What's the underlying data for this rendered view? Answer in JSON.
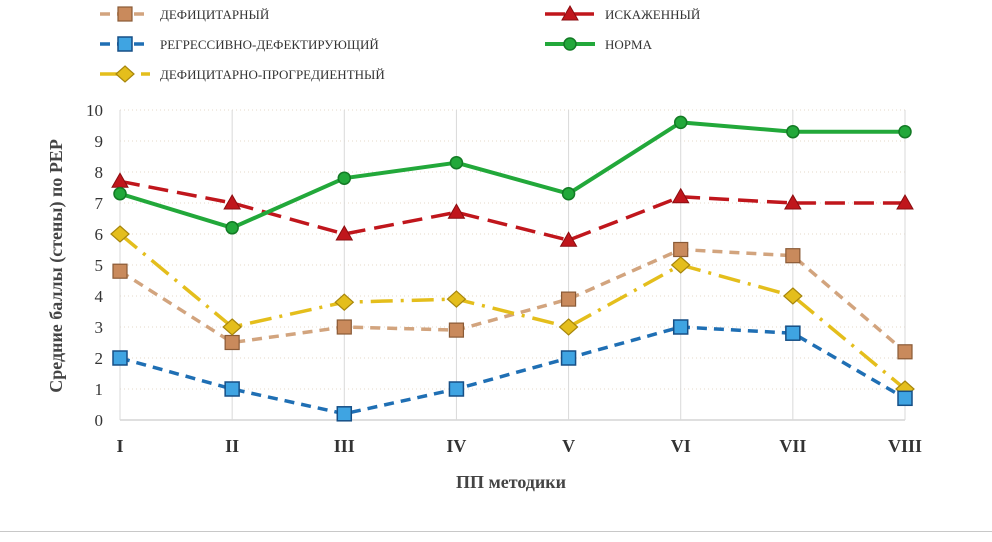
{
  "chart_data": {
    "type": "line",
    "categories": [
      "I",
      "II",
      "III",
      "IV",
      "V",
      "VI",
      "VII",
      "VIII"
    ],
    "xlabel": "ПП методики",
    "ylabel": "Средние баллы (стены) по РЕР",
    "ylim": [
      0,
      10
    ],
    "yticks": [
      "0",
      "1",
      "2",
      "3",
      "4",
      "5",
      "6",
      "7",
      "8",
      "9",
      "10"
    ],
    "grid": true,
    "legend_position": "top",
    "series": [
      {
        "name": "ДЕФИЦИТАРНЫЙ",
        "color": "#d2a47e",
        "dash": "dash",
        "marker": "square-brown",
        "values": [
          4.8,
          2.5,
          3.0,
          2.9,
          3.9,
          5.5,
          5.3,
          2.2
        ]
      },
      {
        "name": "ИСКАЖЕННЫЙ",
        "color": "#c0161c",
        "dash": "longdash",
        "marker": "triangle",
        "values": [
          7.7,
          7.0,
          6.0,
          6.7,
          5.8,
          7.2,
          7.0,
          7.0
        ]
      },
      {
        "name": "РЕГРЕССИВНО-ДЕФЕКТИРУЮЩИЙ",
        "color": "#1f6fb4",
        "dash": "dash",
        "marker": "square-blue",
        "values": [
          2.0,
          1.0,
          0.2,
          1.0,
          2.0,
          3.0,
          2.8,
          0.7
        ]
      },
      {
        "name": "НОРМА",
        "color": "#22a83a",
        "dash": "solid",
        "marker": "circle",
        "values": [
          7.3,
          6.2,
          7.8,
          8.3,
          7.3,
          9.6,
          9.3,
          9.3
        ]
      },
      {
        "name": "ДЕФИЦИТАРНО-ПРОГРЕДИЕНТНЫЙ",
        "color": "#e4be1c",
        "dash": "dashdot",
        "marker": "diamond",
        "values": [
          6.0,
          3.0,
          3.8,
          3.9,
          3.0,
          5.0,
          4.0,
          1.0
        ]
      }
    ]
  }
}
